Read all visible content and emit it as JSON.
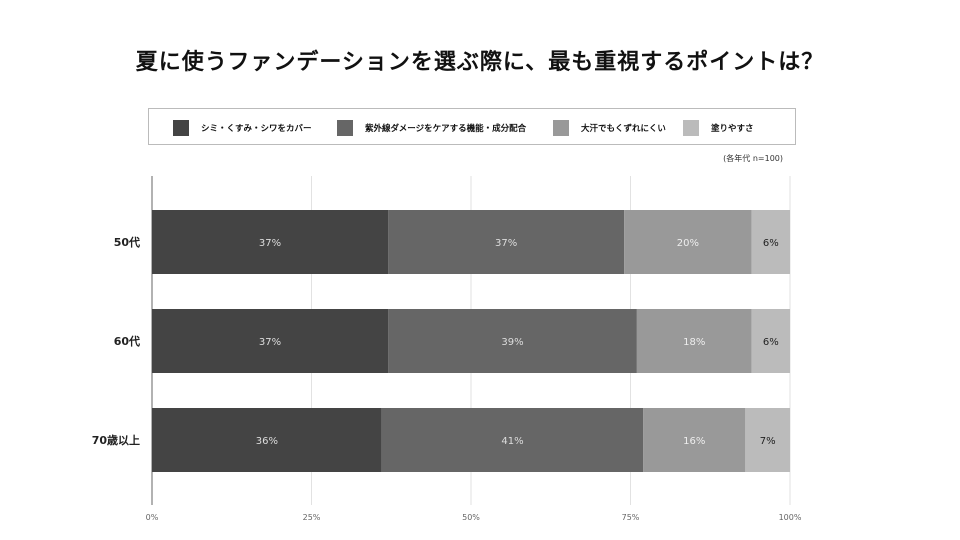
{
  "title": "夏に使うファンデーションを選ぶ際に、最も重視するポイントは？",
  "note": "(各年代 n=100)",
  "chart_data": {
    "type": "bar",
    "orientation": "horizontal",
    "stacked": true,
    "title": "夏に使うファンデーションを選ぶ際に、最も重視するポイントは？",
    "categories": [
      "50代",
      "60代",
      "70歳以上"
    ],
    "series": [
      {
        "name": "シミ・くすみ・シワをカバー",
        "values": [
          37,
          37,
          36
        ],
        "labels": [
          "37%",
          "37%",
          "36%"
        ],
        "color": "#444444",
        "label_color": "#dddddd"
      },
      {
        "name": "紫外線ダメージをケアする機能・成分配合",
        "values": [
          37,
          39,
          41
        ],
        "labels": [
          "37%",
          "39%",
          "41%"
        ],
        "color": "#666666",
        "label_color": "#dddddd"
      },
      {
        "name": "大汗でもくずれにくい",
        "values": [
          20,
          18,
          16
        ],
        "labels": [
          "20%",
          "18%",
          "16%"
        ],
        "color": "#999999",
        "label_color": "#eeeeee"
      },
      {
        "name": "塗りやすさ",
        "values": [
          6,
          6,
          7
        ],
        "labels": [
          "6%",
          "6%",
          "7%"
        ],
        "color": "#bbbbbb",
        "label_color": "#222222"
      }
    ],
    "x_ticks": [
      "0%",
      "25%",
      "50%",
      "75%",
      "100%"
    ],
    "xlim": [
      0,
      100
    ],
    "grid": true,
    "legend_position": "top"
  }
}
